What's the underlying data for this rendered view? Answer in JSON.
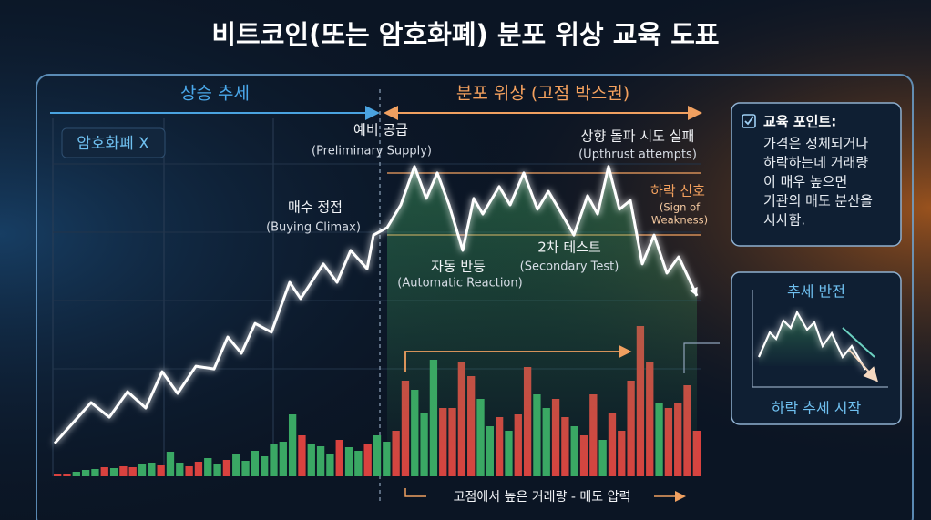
{
  "chart_data": {
    "type": "line",
    "title": "비트코인(또는 암호화폐) 분포 위상 교육 도표",
    "phase_up": "상승 추세",
    "phase_distribution": "분포 위상 (고점 박스권)",
    "asset": "암호화폐 X",
    "annotations": [
      {
        "label": "예비 공급",
        "sub": "(Preliminary Supply)"
      },
      {
        "label": "매수 정점",
        "sub": "(Buying Climax)"
      },
      {
        "label": "자동 반등",
        "sub": "(Automatic Reaction)"
      },
      {
        "label": "2차 테스트",
        "sub": "(Secondary Test)"
      },
      {
        "label": "상향 돌파 시도 실패",
        "sub": "(Upthrust attempts)"
      },
      {
        "label": "하락 신호",
        "sub": [
          "(Sign of",
          "Weakness)"
        ]
      }
    ],
    "volume_note": "고점에서 높은 거래량 - 매도 압력",
    "xlim": [
      0,
      712
    ],
    "ylim": [
      0,
      100
    ],
    "x": [
      2,
      42,
      62,
      82,
      102,
      120,
      137,
      157,
      177,
      192,
      207,
      222,
      240,
      260,
      272,
      297,
      312,
      327,
      345,
      352,
      367,
      382,
      397,
      410,
      422,
      435,
      450,
      462,
      472,
      490,
      502,
      517,
      532,
      544,
      557,
      572,
      587,
      598,
      610,
      622,
      634,
      647,
      660,
      674,
      687,
      707
    ],
    "series": [
      {
        "color": "#ffffff",
        "values": [
          9.7,
          21.7,
          17.4,
          24.9,
          20.1,
          30.8,
          24.4,
          32.4,
          31.6,
          41.0,
          36.2,
          45.0,
          42.4,
          57.1,
          52.3,
          62.5,
          57.1,
          66.5,
          61.1,
          71.0,
          73.2,
          79.9,
          91.2,
          81.8,
          89.3,
          79.9,
          66.5,
          81.8,
          77.2,
          85.3,
          79.9,
          89.3,
          78.6,
          83.9,
          78.0,
          71.0,
          82.6,
          77.2,
          91.2,
          78.6,
          81.2,
          62.5,
          71.0,
          59.8,
          64.6,
          53.1
        ]
      }
    ],
    "volume": {
      "ylim": [
        0,
        170
      ],
      "values": [
        2,
        3,
        5,
        7,
        8,
        10,
        9,
        11,
        10,
        13,
        15,
        12,
        27,
        15,
        11,
        16,
        20,
        13,
        18,
        24,
        17,
        28,
        22,
        36,
        38,
        68,
        45,
        36,
        33,
        25,
        40,
        32,
        28,
        35,
        45,
        38,
        50,
        105,
        95,
        70,
        128,
        75,
        75,
        125,
        110,
        85,
        55,
        65,
        50,
        68,
        120,
        90,
        75,
        85,
        65,
        55,
        45,
        90,
        40,
        70,
        50,
        105,
        165,
        125,
        80,
        75,
        80,
        100,
        50
      ],
      "colors": [
        "#d9423f",
        "#d9423f",
        "#3aa864",
        "#3aa864",
        "#3aa864",
        "#d9423f",
        "#3aa864",
        "#d9423f",
        "#d9423f",
        "#3aa864",
        "#3aa864",
        "#d9423f",
        "#3aa864",
        "#3aa864",
        "#d9423f",
        "#d9423f",
        "#3aa864",
        "#3aa864",
        "#d9423f",
        "#3aa864",
        "#3aa864",
        "#3aa864",
        "#3aa864",
        "#3aa864",
        "#3aa864",
        "#3aa864",
        "#d9423f",
        "#3aa864",
        "#3aa864",
        "#3aa864",
        "#d9423f",
        "#3aa864",
        "#3aa864",
        "#d9423f",
        "#3aa864",
        "#3aa864",
        "#d9423f",
        "#d9423f",
        "#3aa864",
        "#3aa864",
        "#3aa864",
        "#d9423f",
        "#d9423f",
        "#d9423f",
        "#d9423f",
        "#3aa864",
        "#3aa864",
        "#d9423f",
        "#3aa864",
        "#d9423f",
        "#d9423f",
        "#3aa864",
        "#3aa864",
        "#d9423f",
        "#d9423f",
        "#3aa864",
        "#d9423f",
        "#d9423f",
        "#3aa864",
        "#d9423f",
        "#d9423f",
        "#d9423f",
        "#d9423f",
        "#d9423f",
        "#3aa864",
        "#d9423f",
        "#d9423f",
        "#d9423f",
        "#d9423f"
      ]
    }
  },
  "info": {
    "title": "교육 포인트:",
    "lines": [
      "가격은 정체되거나",
      "하락하는데 거래량",
      "이 매우 높으면",
      "기관의 매도 분산을",
      "시사함."
    ]
  },
  "inset": {
    "title": "추세 반전",
    "caption": "하락 추세 시작"
  }
}
